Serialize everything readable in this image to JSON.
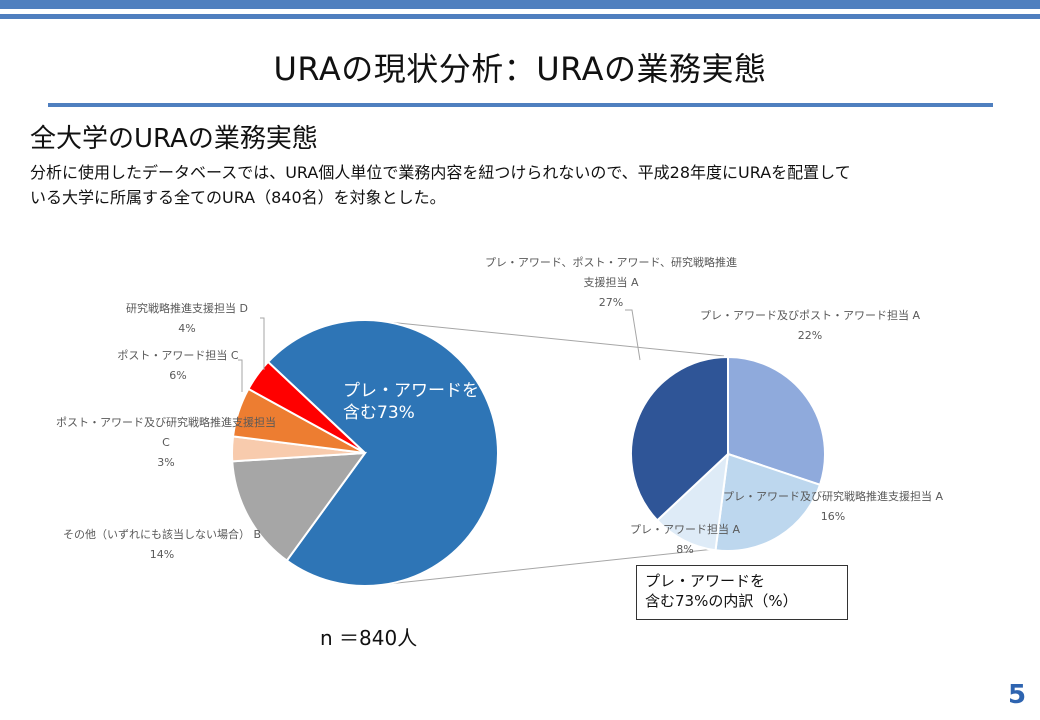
{
  "slide": {
    "title": "URAの現状分析：URAの業務実態",
    "subtitle": "全大学のURAの業務実態",
    "description_lines": [
      "分析に使用したデータベースでは、URA個人単位で業務内容を紐つけられないので、平成28年度にURAを配置して",
      "いる大学に所属する全てのURA（840名）を対象とした。"
    ],
    "n_label": "n ＝840人",
    "page_number": "5",
    "breakdown_caption_lines": [
      "プレ・アワードを",
      "含む73%の内訳（%）"
    ]
  },
  "colors": {
    "band": "#4f7fbf",
    "page_number": "#2e64b0"
  },
  "chart_data": [
    {
      "type": "pie",
      "title": "",
      "slices": [
        {
          "label_lines": [
            "プレ・アワードを",
            "含む73%"
          ],
          "value": 73,
          "color": "#2e75b6"
        },
        {
          "label_lines": [
            "その他（いずれにも該当しない場合） B",
            "14%"
          ],
          "value": 14,
          "color": "#a6a6a6"
        },
        {
          "label_lines": [
            "ポスト・アワード及び研究戦略推進支援担当",
            "C",
            "3%"
          ],
          "value": 3,
          "color": "#f8cbad"
        },
        {
          "label_lines": [
            "ポスト・アワード担当 C",
            "6%"
          ],
          "value": 6,
          "color": "#ed7d31"
        },
        {
          "label_lines": [
            "研究戦略推進支援担当 D",
            "4%"
          ],
          "value": 4,
          "color": "#ff0000"
        }
      ]
    },
    {
      "type": "pie",
      "title": "プレ・アワードを 含む73%の内訳（%）",
      "slices": [
        {
          "label_lines": [
            "プレ・アワード及びポスト・アワード担当 A",
            "22%"
          ],
          "value": 22,
          "color": "#8faadc"
        },
        {
          "label_lines": [
            "プレ・アワード及び研究戦略推進支援担当 A",
            "16%"
          ],
          "value": 16,
          "color": "#bdd7ee"
        },
        {
          "label_lines": [
            "プレ・アワード担当 A",
            "8%"
          ],
          "value": 8,
          "color": "#deebf7"
        },
        {
          "label_lines": [
            "プレ・アワード、ポスト・アワード、研究戦略推進",
            "支援担当 A",
            "27%"
          ],
          "value": 27,
          "color": "#2f5597"
        }
      ]
    }
  ]
}
